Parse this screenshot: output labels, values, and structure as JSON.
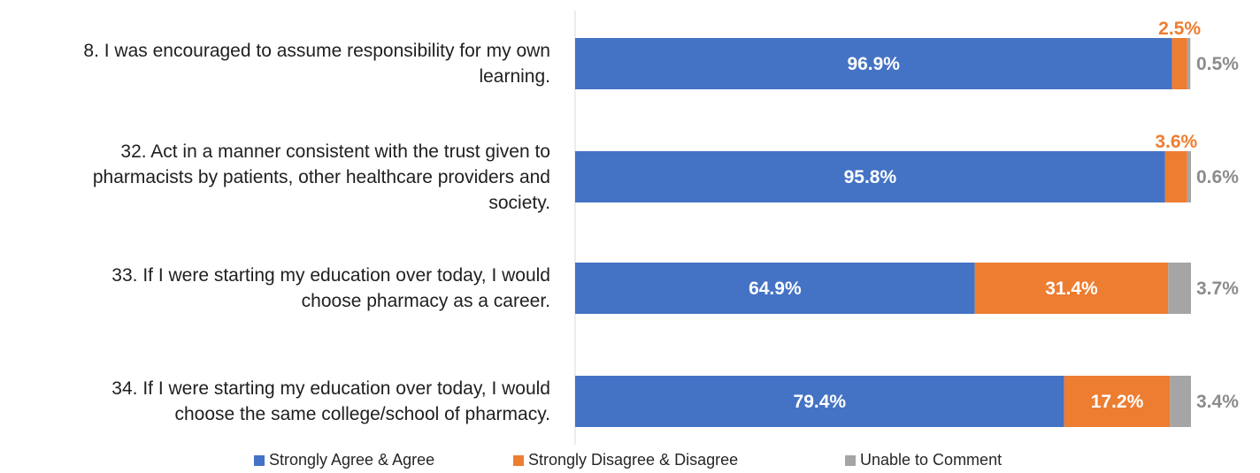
{
  "chart_data": {
    "type": "bar",
    "orientation": "horizontal",
    "stacked": true,
    "categories": [
      "8. I was encouraged to assume responsibility for my own learning.",
      "32. Act in a manner consistent with the trust given to pharmacists by patients, other healthcare providers and society.",
      "33. If I were starting my education over today, I would choose pharmacy as a career.",
      "34. If I were starting my education over today, I would choose the same college/school of pharmacy."
    ],
    "category_lines": [
      [
        "8. I was encouraged to assume responsibility for my own",
        "learning."
      ],
      [
        "32. Act in a manner consistent with the trust given to",
        "pharmacists by patients, other healthcare providers and",
        "society."
      ],
      [
        "33. If I were starting my education over today, I would",
        "choose pharmacy as a career."
      ],
      [
        "34. If I were starting my education over today, I would",
        "choose the same college/school of pharmacy."
      ]
    ],
    "series": [
      {
        "name": "Strongly Agree & Agree",
        "color": "#4472C4",
        "values": [
          96.9,
          95.8,
          64.9,
          79.4
        ]
      },
      {
        "name": "Strongly Disagree & Disagree",
        "color": "#ED7D31",
        "values": [
          2.5,
          3.6,
          31.4,
          17.2
        ]
      },
      {
        "name": "Unable to Comment",
        "color": "#A5A5A5",
        "values": [
          0.5,
          0.6,
          3.7,
          3.4
        ]
      }
    ],
    "data_labels": [
      [
        "96.9%",
        "2.5%",
        "0.5%"
      ],
      [
        "95.8%",
        "3.6%",
        "0.6%"
      ],
      [
        "64.9%",
        "31.4%",
        "3.7%"
      ],
      [
        "79.4%",
        "17.2%",
        "3.4%"
      ]
    ],
    "xlim": [
      0,
      100
    ],
    "legend_position": "bottom",
    "grid": false
  }
}
